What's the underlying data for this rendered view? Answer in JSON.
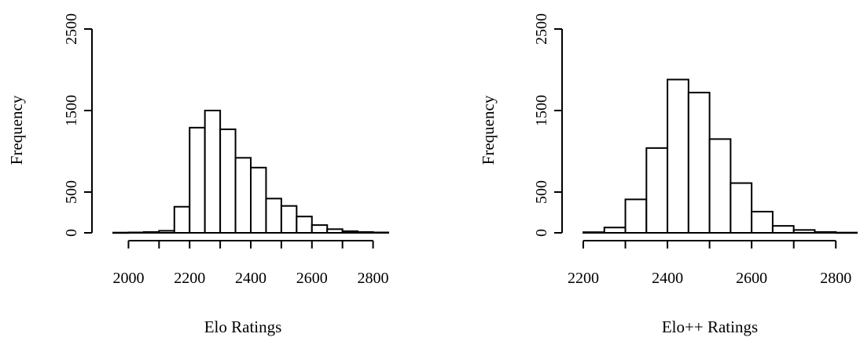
{
  "chart_data": [
    {
      "type": "bar",
      "title": "",
      "xlabel": "Elo Ratings",
      "ylabel": "Frequency",
      "xlim": [
        1950,
        2850
      ],
      "ylim": [
        0,
        2500
      ],
      "xticks": [
        2000,
        2200,
        2400,
        2600,
        2800
      ],
      "yticks": [
        0,
        500,
        1500,
        2500
      ],
      "bin_width": 50,
      "bins": [
        {
          "x0": 1950,
          "x1": 2000,
          "value": 3
        },
        {
          "x0": 2000,
          "x1": 2050,
          "value": 5
        },
        {
          "x0": 2050,
          "x1": 2100,
          "value": 10
        },
        {
          "x0": 2100,
          "x1": 2150,
          "value": 25
        },
        {
          "x0": 2150,
          "x1": 2200,
          "value": 320
        },
        {
          "x0": 2200,
          "x1": 2250,
          "value": 1290
        },
        {
          "x0": 2250,
          "x1": 2300,
          "value": 1500
        },
        {
          "x0": 2300,
          "x1": 2350,
          "value": 1270
        },
        {
          "x0": 2350,
          "x1": 2400,
          "value": 920
        },
        {
          "x0": 2400,
          "x1": 2450,
          "value": 800
        },
        {
          "x0": 2450,
          "x1": 2500,
          "value": 420
        },
        {
          "x0": 2500,
          "x1": 2550,
          "value": 330
        },
        {
          "x0": 2550,
          "x1": 2600,
          "value": 200
        },
        {
          "x0": 2600,
          "x1": 2650,
          "value": 95
        },
        {
          "x0": 2650,
          "x1": 2700,
          "value": 45
        },
        {
          "x0": 2700,
          "x1": 2750,
          "value": 20
        },
        {
          "x0": 2750,
          "x1": 2800,
          "value": 10
        },
        {
          "x0": 2800,
          "x1": 2850,
          "value": 5
        }
      ]
    },
    {
      "type": "bar",
      "title": "",
      "xlabel": "Elo++ Ratings",
      "ylabel": "Frequency",
      "xlim": [
        2200,
        2850
      ],
      "ylim": [
        0,
        2500
      ],
      "xticks": [
        2200,
        2400,
        2600,
        2800
      ],
      "yticks": [
        0,
        500,
        1500,
        2500
      ],
      "bin_width": 50,
      "bins": [
        {
          "x0": 2200,
          "x1": 2250,
          "value": 8
        },
        {
          "x0": 2250,
          "x1": 2300,
          "value": 65
        },
        {
          "x0": 2300,
          "x1": 2350,
          "value": 410
        },
        {
          "x0": 2350,
          "x1": 2400,
          "value": 1040
        },
        {
          "x0": 2400,
          "x1": 2450,
          "value": 1880
        },
        {
          "x0": 2450,
          "x1": 2500,
          "value": 1720
        },
        {
          "x0": 2500,
          "x1": 2550,
          "value": 1150
        },
        {
          "x0": 2550,
          "x1": 2600,
          "value": 610
        },
        {
          "x0": 2600,
          "x1": 2650,
          "value": 260
        },
        {
          "x0": 2650,
          "x1": 2700,
          "value": 85
        },
        {
          "x0": 2700,
          "x1": 2750,
          "value": 35
        },
        {
          "x0": 2750,
          "x1": 2800,
          "value": 10
        },
        {
          "x0": 2800,
          "x1": 2850,
          "value": 3
        }
      ]
    }
  ]
}
